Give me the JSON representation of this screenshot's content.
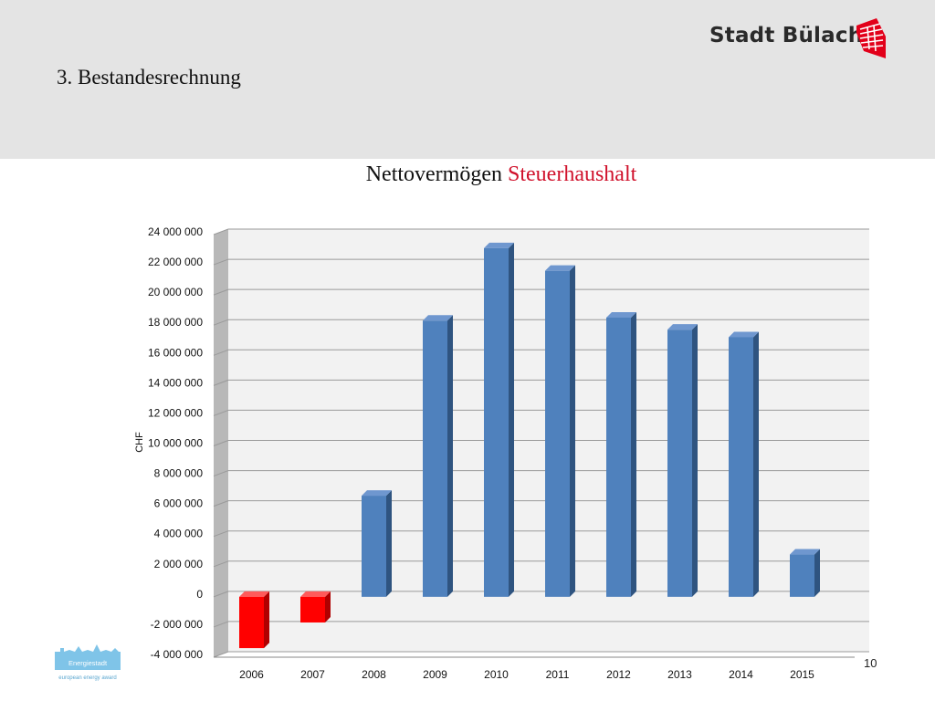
{
  "header": {
    "section_title": "3. Bestandesrechnung",
    "brand_name": "Stadt Bülach"
  },
  "chart_title": {
    "part1": "Nettovermögen",
    "part2": "Steuerhaushalt",
    "accent_color": "#d0112b"
  },
  "footer": {
    "page_number": "10",
    "logo_text": "Energiestadt",
    "logo_subtext": "european energy award"
  },
  "chart_data": {
    "type": "bar",
    "categories": [
      "2006",
      "2007",
      "2008",
      "2009",
      "2010",
      "2011",
      "2012",
      "2013",
      "2014",
      "2015"
    ],
    "values": [
      -3400000,
      -1700000,
      6700000,
      18300000,
      23100000,
      21600000,
      18500000,
      17700000,
      17200000,
      2800000
    ],
    "ylabel": "CHF",
    "ylim": [
      -4000000,
      24000000
    ],
    "yticks": [
      -4000000,
      -2000000,
      0,
      2000000,
      4000000,
      6000000,
      8000000,
      10000000,
      12000000,
      14000000,
      16000000,
      18000000,
      20000000,
      22000000,
      24000000
    ],
    "ytick_labels": [
      "-4 000 000",
      "-2 000 000",
      "0",
      "2 000 000",
      "4 000 000",
      "6 000 000",
      "8 000 000",
      "10 000 000",
      "12 000 000",
      "14 000 000",
      "16 000 000",
      "18 000 000",
      "20 000 000",
      "22 000 000",
      "24 000 000"
    ],
    "grid": true,
    "positive_color": "#4f81bd",
    "negative_color": "#ff0000"
  }
}
